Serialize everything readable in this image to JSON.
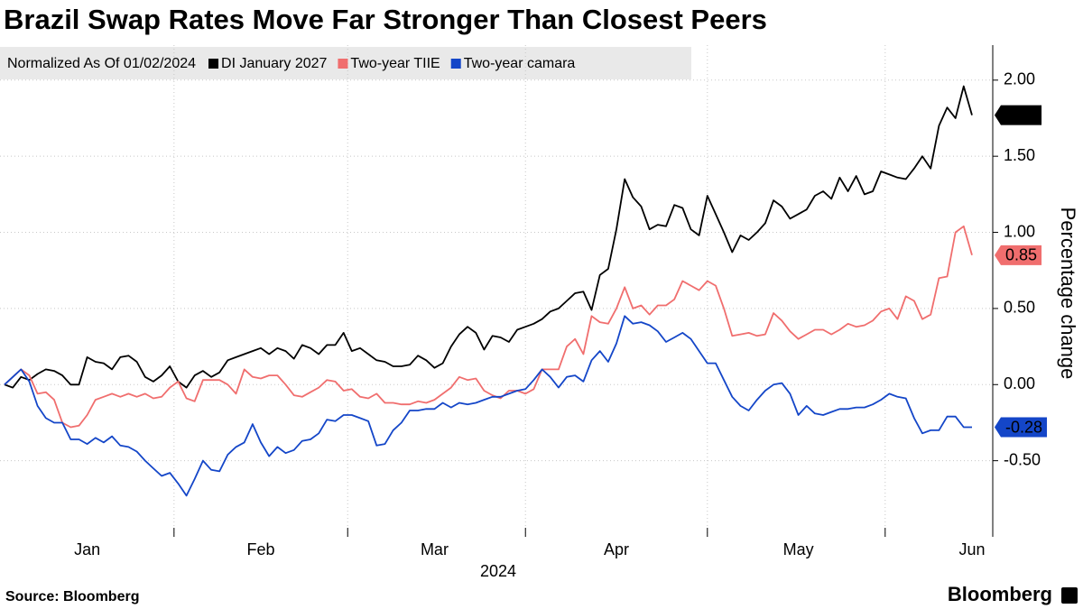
{
  "chart_data": {
    "type": "line",
    "title": "Brazil Swap Rates Move Far Stronger Than Closest Peers",
    "legend_title": "Normalized As Of 01/02/2024",
    "xlabel": "2024",
    "ylabel": "Percentage change",
    "source": "Source: Bloomberg",
    "logo": "Bloomberg",
    "grid": true,
    "legend": "top-left",
    "categories": [
      null,
      null,
      null,
      null,
      null,
      null,
      null,
      null,
      null,
      null,
      "Jan",
      null,
      null,
      null,
      null,
      null,
      null,
      null,
      null,
      null,
      null,
      null,
      null,
      null,
      null,
      null,
      null,
      null,
      null,
      null,
      null,
      "Feb",
      null,
      null,
      null,
      null,
      null,
      null,
      null,
      null,
      null,
      null,
      null,
      null,
      null,
      null,
      null,
      null,
      null,
      null,
      null,
      null,
      "Mar",
      null,
      null,
      null,
      null,
      null,
      null,
      null,
      null,
      null,
      null,
      null,
      null,
      null,
      null,
      null,
      null,
      null,
      null,
      null,
      null,
      null,
      "Apr",
      null,
      null,
      null,
      null,
      null,
      null,
      null,
      null,
      null,
      null,
      null,
      null,
      null,
      null,
      null,
      null,
      null,
      null,
      null,
      null,
      null,
      "May",
      null,
      null,
      null,
      null,
      null,
      null,
      null,
      null,
      null,
      null,
      null,
      null,
      null,
      null,
      null,
      null,
      null,
      null,
      null,
      null,
      "Jun"
    ],
    "ylim": [
      -1.0,
      2.23
    ],
    "yticks": [
      {
        "value": -0.5,
        "label": "-0.50"
      },
      {
        "value": 0,
        "label": "0.00"
      },
      {
        "value": 0.5,
        "label": "0.50"
      },
      {
        "value": 1,
        "label": "1.00"
      },
      {
        "value": 1.5,
        "label": "1.50"
      },
      {
        "value": 2,
        "label": "2.00"
      }
    ],
    "series": [
      {
        "name": "DI January 2027",
        "color": "#000000",
        "values": [
          0.0,
          -0.02,
          0.05,
          0.03,
          0.07,
          0.1,
          0.09,
          0.06,
          0.0,
          0.0,
          0.18,
          0.15,
          0.14,
          0.1,
          0.18,
          0.19,
          0.15,
          0.05,
          0.02,
          0.06,
          0.12,
          0.02,
          -0.02,
          0.06,
          0.09,
          0.05,
          0.08,
          0.16,
          0.18,
          0.2,
          0.22,
          0.24,
          0.2,
          0.24,
          0.22,
          0.17,
          0.26,
          0.24,
          0.2,
          0.26,
          0.26,
          0.34,
          0.22,
          0.24,
          0.2,
          0.16,
          0.15,
          0.12,
          0.12,
          0.13,
          0.19,
          0.16,
          0.11,
          0.14,
          0.25,
          0.33,
          0.38,
          0.34,
          0.23,
          0.32,
          0.31,
          0.28,
          0.36,
          0.38,
          0.4,
          0.43,
          0.48,
          0.5,
          0.55,
          0.6,
          0.61,
          0.49,
          0.72,
          0.76,
          1.02,
          1.35,
          1.23,
          1.17,
          1.02,
          1.05,
          1.04,
          1.18,
          1.16,
          1.02,
          0.98,
          1.24,
          1.12,
          1.0,
          0.87,
          0.98,
          0.95,
          1.0,
          1.06,
          1.21,
          1.17,
          1.09,
          1.12,
          1.15,
          1.24,
          1.27,
          1.22,
          1.36,
          1.27,
          1.37,
          1.25,
          1.27,
          1.4,
          1.38,
          1.36,
          1.35,
          1.42,
          1.5,
          1.42,
          1.7,
          1.82,
          1.75,
          1.96,
          1.77
        ]
      },
      {
        "name": "Two-year TIIE",
        "color": "#f06e6e",
        "values": [
          0.0,
          0.05,
          0.1,
          0.06,
          -0.06,
          -0.05,
          -0.1,
          -0.25,
          -0.28,
          -0.27,
          -0.2,
          -0.1,
          -0.08,
          -0.06,
          -0.08,
          -0.06,
          -0.08,
          -0.06,
          -0.09,
          -0.08,
          -0.02,
          0.02,
          -0.09,
          -0.11,
          0.03,
          0.03,
          0.03,
          0.0,
          -0.06,
          0.1,
          0.05,
          0.04,
          0.06,
          0.06,
          0.0,
          -0.07,
          -0.08,
          -0.05,
          -0.02,
          0.03,
          0.02,
          -0.04,
          -0.03,
          -0.08,
          -0.09,
          -0.06,
          -0.12,
          -0.12,
          -0.13,
          -0.13,
          -0.11,
          -0.12,
          -0.1,
          -0.06,
          -0.02,
          0.05,
          0.03,
          0.04,
          -0.04,
          -0.07,
          -0.09,
          -0.04,
          -0.04,
          -0.06,
          -0.03,
          0.1,
          0.1,
          0.1,
          0.25,
          0.3,
          0.2,
          0.45,
          0.41,
          0.4,
          0.5,
          0.64,
          0.5,
          0.52,
          0.46,
          0.52,
          0.52,
          0.56,
          0.68,
          0.65,
          0.62,
          0.68,
          0.65,
          0.5,
          0.32,
          0.33,
          0.34,
          0.32,
          0.33,
          0.47,
          0.42,
          0.35,
          0.3,
          0.33,
          0.36,
          0.36,
          0.33,
          0.36,
          0.4,
          0.38,
          0.39,
          0.42,
          0.48,
          0.5,
          0.43,
          0.58,
          0.55,
          0.43,
          0.46,
          0.7,
          0.71,
          1.0,
          1.04,
          0.85
        ]
      },
      {
        "name": "Two-year camara",
        "color": "#1446c8",
        "values": [
          0.0,
          0.05,
          0.1,
          0.02,
          -0.14,
          -0.22,
          -0.25,
          -0.25,
          -0.36,
          -0.36,
          -0.39,
          -0.35,
          -0.38,
          -0.34,
          -0.4,
          -0.41,
          -0.44,
          -0.5,
          -0.55,
          -0.6,
          -0.58,
          -0.65,
          -0.73,
          -0.62,
          -0.5,
          -0.56,
          -0.57,
          -0.46,
          -0.41,
          -0.38,
          -0.26,
          -0.38,
          -0.47,
          -0.41,
          -0.45,
          -0.43,
          -0.37,
          -0.36,
          -0.32,
          -0.23,
          -0.24,
          -0.2,
          -0.2,
          -0.22,
          -0.24,
          -0.4,
          -0.39,
          -0.3,
          -0.25,
          -0.17,
          -0.17,
          -0.16,
          -0.16,
          -0.12,
          -0.15,
          -0.12,
          -0.13,
          -0.12,
          -0.1,
          -0.08,
          -0.08,
          -0.06,
          -0.04,
          -0.03,
          0.03,
          0.1,
          0.05,
          -0.02,
          0.05,
          0.06,
          0.02,
          0.16,
          0.22,
          0.15,
          0.27,
          0.45,
          0.4,
          0.41,
          0.39,
          0.35,
          0.28,
          0.31,
          0.34,
          0.3,
          0.22,
          0.14,
          0.14,
          0.03,
          -0.08,
          -0.14,
          -0.17,
          -0.1,
          -0.04,
          0.0,
          0.01,
          -0.06,
          -0.2,
          -0.14,
          -0.19,
          -0.2,
          -0.18,
          -0.16,
          -0.16,
          -0.15,
          -0.15,
          -0.13,
          -0.1,
          -0.06,
          -0.08,
          -0.09,
          -0.22,
          -0.32,
          -0.3,
          -0.3,
          -0.21,
          -0.21,
          -0.28,
          -0.28
        ]
      }
    ]
  }
}
